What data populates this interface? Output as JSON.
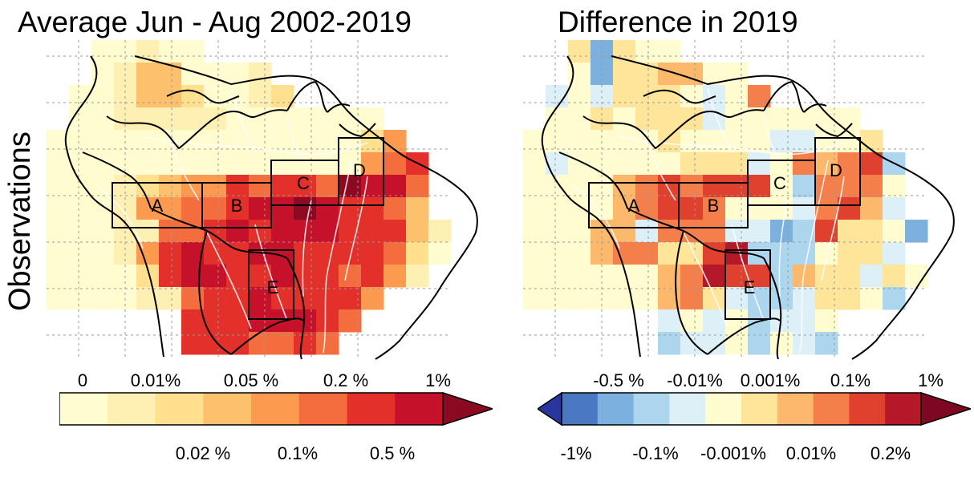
{
  "panels": [
    {
      "id": "average",
      "title": "Average Jun - Aug 2002-2019",
      "boxes": [
        "A",
        "B",
        "C",
        "D",
        "E"
      ]
    },
    {
      "id": "difference",
      "title": "Difference in 2019",
      "boxes": [
        "A",
        "B",
        "C",
        "D",
        "E"
      ]
    }
  ],
  "row_label": "Observations",
  "colorbars": [
    {
      "id": "average-colorbar",
      "colors": [
        "#fffcd0",
        "#feefb2",
        "#fee08f",
        "#fdc06d",
        "#fc9b50",
        "#f46d3e",
        "#e3302a",
        "#c5112a",
        "#8b0a22"
      ],
      "top_labels": [
        "0",
        "0.01%",
        "0.05 %",
        "0.2 %",
        "1%"
      ],
      "bottom_labels": [
        "0.02 %",
        "0.1%",
        "0.5 %"
      ]
    },
    {
      "id": "difference-colorbar",
      "colors": [
        "#2936a0",
        "#4a78c2",
        "#7cb0de",
        "#acd5ee",
        "#ddf0f8",
        "#fffcd0",
        "#fee59a",
        "#fdb96b",
        "#f57f4a",
        "#e0402e",
        "#b51829",
        "#7e0823"
      ],
      "top_labels": [
        "-0.5 %",
        "-0.01%",
        "0.001%",
        "0.1%",
        "1%"
      ],
      "bottom_labels": [
        "-1%",
        "-0.1%",
        "-0.001%",
        "0.01%",
        "0.2%"
      ]
    }
  ]
}
